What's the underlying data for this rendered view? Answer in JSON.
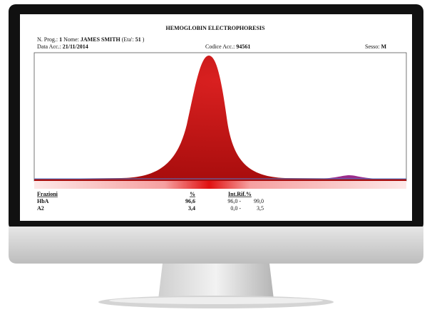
{
  "header": {
    "title": "HEMOGLOBIN ELECTROPHORESIS",
    "patient": {
      "prog_label": "N. Prog.:",
      "prog": "1",
      "name_label": "Nome:",
      "name": "JAMES SMITH",
      "age_label": "(Eta':",
      "age": "51",
      "age_close": ")"
    },
    "accession": {
      "date_label": "Data Acc.:",
      "date": "21/11/2014",
      "code_label": "Codice Acc.:",
      "code": "94561",
      "sex_label": "Sesso:",
      "sex": "M"
    }
  },
  "table": {
    "headers": [
      "Frazioni",
      "%",
      "Int.Rif.%"
    ],
    "rows": [
      [
        "HbA",
        "96,6",
        "96,0 -",
        "99,0"
      ],
      [
        "A2",
        "3,4",
        "0,0 -",
        "3,5"
      ]
    ]
  }
}
